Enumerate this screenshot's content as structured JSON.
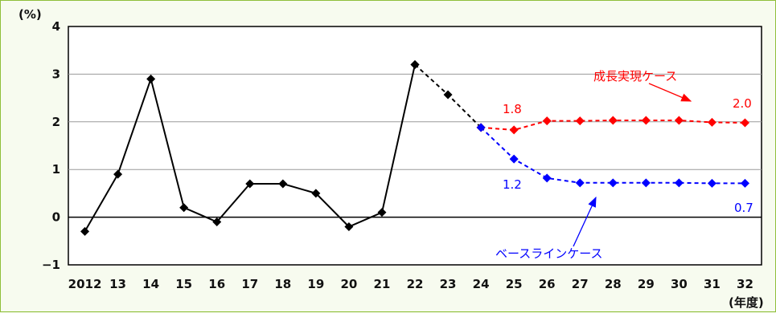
{
  "chart_data": {
    "type": "line",
    "y_unit": "(%)",
    "x_unit": "(年度)",
    "categories": [
      "2012",
      "13",
      "14",
      "15",
      "16",
      "17",
      "18",
      "19",
      "20",
      "21",
      "22",
      "23",
      "24",
      "25",
      "26",
      "27",
      "28",
      "29",
      "30",
      "31",
      "32"
    ],
    "ylim": [
      -1,
      4
    ],
    "yticks": [
      "4",
      "3",
      "2",
      "1",
      "0",
      "−1"
    ],
    "grid": true,
    "series": [
      {
        "values": [
          -0.3,
          0.9,
          2.9,
          0.2,
          -0.1,
          0.7,
          0.7,
          0.5,
          -0.2,
          0.1,
          3.2,
          null,
          null,
          null,
          null,
          null,
          null,
          null,
          null,
          null,
          null
        ],
        "color": "#000000",
        "style": "solid"
      },
      {
        "values": [
          null,
          null,
          null,
          null,
          null,
          null,
          null,
          null,
          null,
          null,
          3.2,
          2.57,
          1.88,
          null,
          null,
          null,
          null,
          null,
          null,
          null,
          null
        ],
        "color": "#000000",
        "style": "dashed"
      },
      {
        "name": "成長実現ケース",
        "values": [
          null,
          null,
          null,
          null,
          null,
          null,
          null,
          null,
          null,
          null,
          null,
          null,
          1.88,
          1.83,
          2.02,
          2.02,
          2.03,
          2.03,
          2.03,
          1.99,
          1.98
        ],
        "color": "#ff0000",
        "style": "dashed"
      },
      {
        "name": "ベースラインケース",
        "values": [
          null,
          null,
          null,
          null,
          null,
          null,
          null,
          null,
          null,
          null,
          null,
          null,
          1.88,
          1.22,
          0.82,
          0.72,
          0.72,
          0.72,
          0.72,
          0.71,
          0.71
        ],
        "color": "#0000ff",
        "style": "dashed"
      }
    ],
    "annotations": {
      "red_case": "成長実現ケース",
      "blue_case": "ベースラインケース",
      "red_25": "1.8",
      "red_32": "2.0",
      "blue_25": "1.2",
      "blue_32": "0.7"
    }
  }
}
